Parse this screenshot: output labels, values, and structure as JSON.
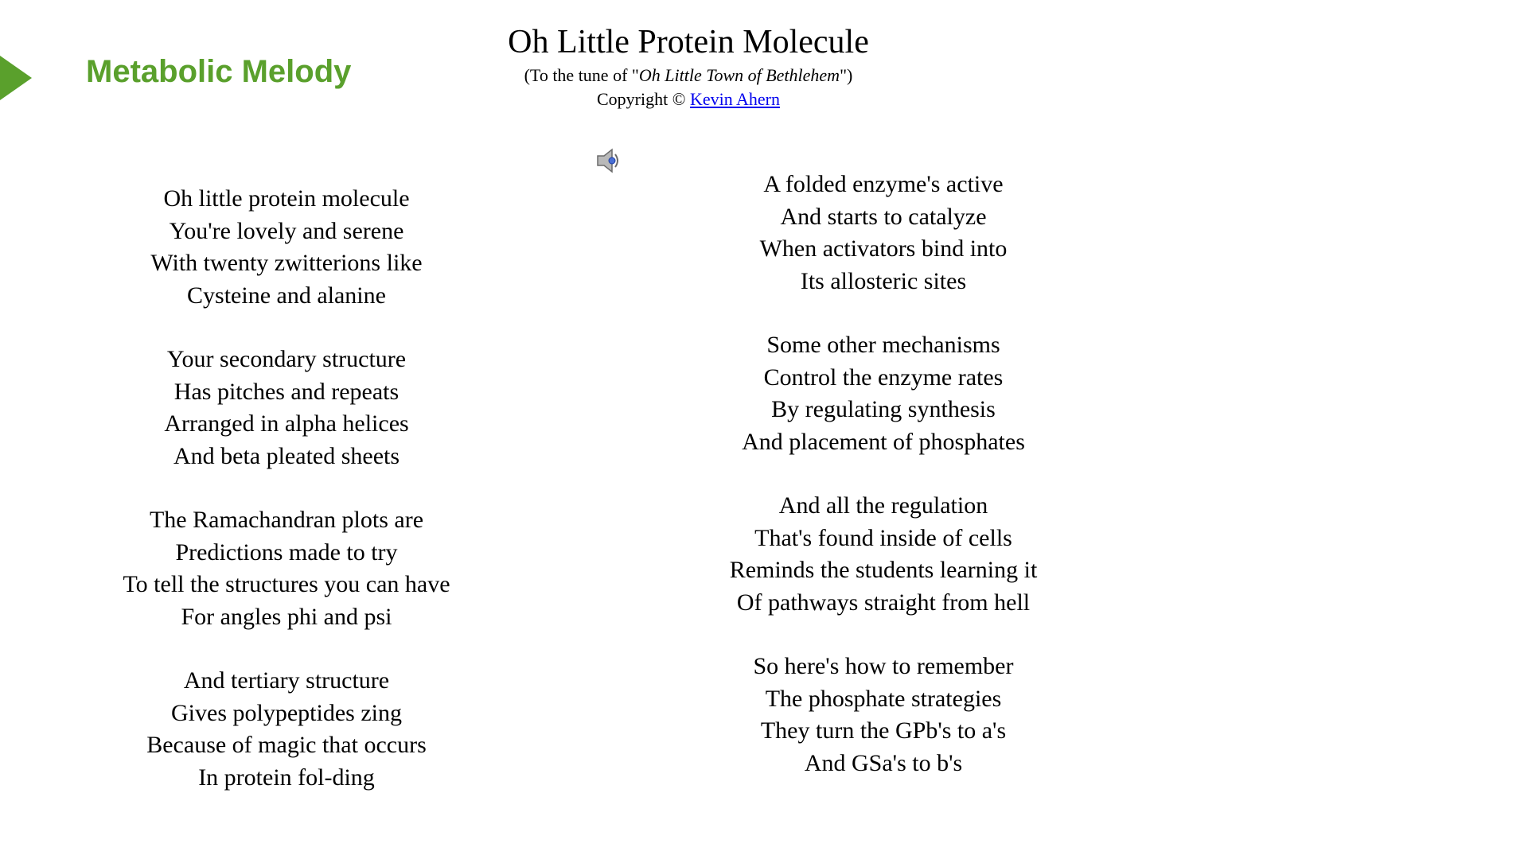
{
  "colors": {
    "accent_green": "#5aa02c",
    "link_blue": "#0000ee",
    "text": "#000000",
    "background": "#ffffff"
  },
  "label": "Metabolic Melody",
  "title": "Oh Little Protein Molecule",
  "subtitle_prefix": "(To the tune of \"",
  "subtitle_italic": "Oh Little Town of Bethlehem",
  "subtitle_suffix": "\")",
  "copyright_prefix": "Copyright © ",
  "author": "Kevin Ahern",
  "left_stanzas": [
    [
      "Oh little protein molecule",
      "You're lovely and serene",
      "With twenty zwitterions like",
      "Cysteine and alanine"
    ],
    [
      "Your secondary structure",
      "Has pitches and repeats",
      "Arranged in alpha helices",
      "And beta pleated sheets"
    ],
    [
      "The Ramachandran plots are",
      "Predictions made to try",
      "To tell the structures you can have",
      "For angles phi and psi"
    ],
    [
      "And tertiary structure",
      "Gives polypeptides zing",
      "Because of magic that occurs",
      "In protein fol-ding"
    ]
  ],
  "right_stanzas": [
    [
      "A folded enzyme's active",
      "And starts to catalyze",
      "When activators bind into",
      "Its allosteric sites"
    ],
    [
      "Some other mechanisms",
      "Control the enzyme rates",
      "By regulating synthesis",
      "And placement of phosphates"
    ],
    [
      "And all the regulation",
      "That's found inside of cells",
      "Reminds the students learning it",
      "Of pathways straight from hell"
    ],
    [
      "So here's how to remember",
      "The phosphate strategies",
      "They turn the GPb's to a's",
      "And GSa's to b's"
    ]
  ]
}
